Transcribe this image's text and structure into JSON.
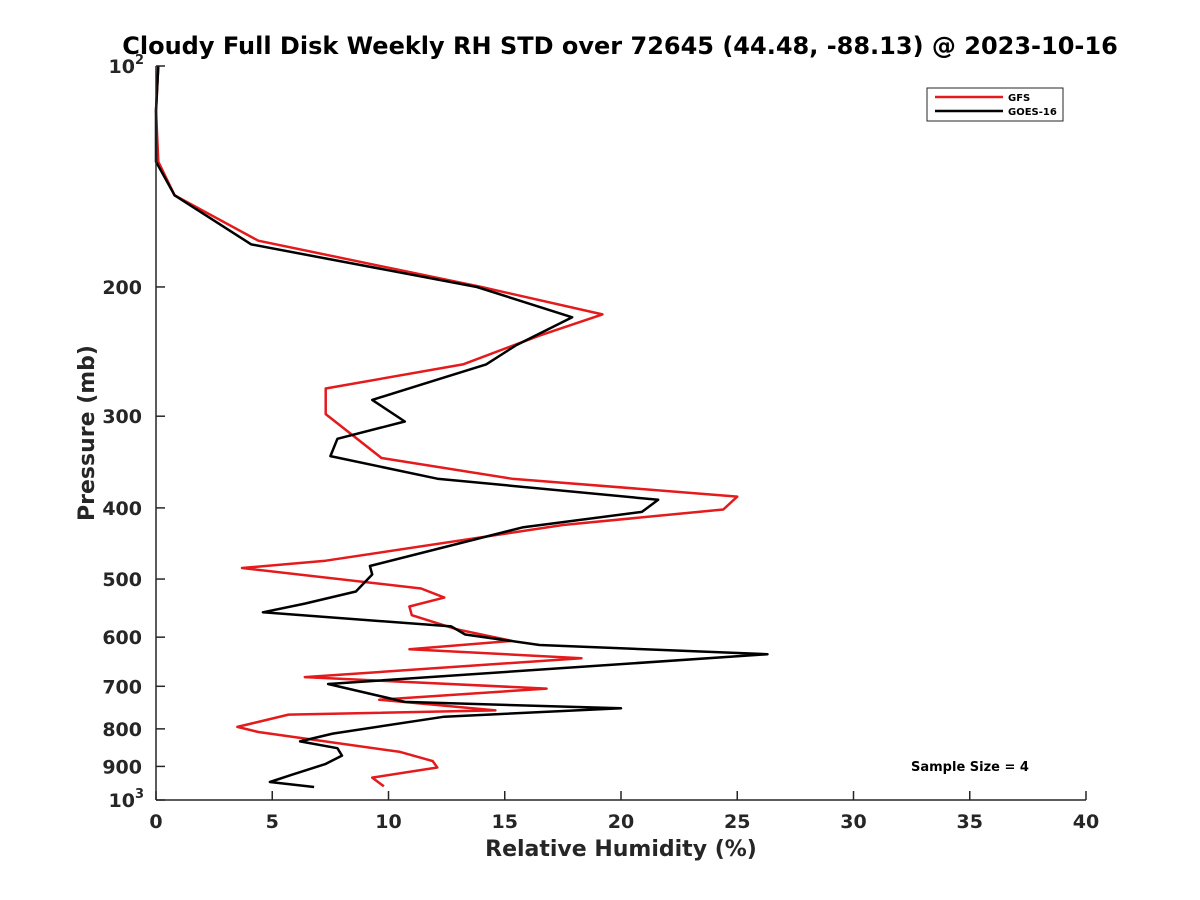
{
  "chart_data": {
    "type": "line",
    "title": "Cloudy Full Disk Weekly RH STD over 72645 (44.48, -88.13) @ 2023-10-16",
    "xlabel": "Relative Humidity (%)",
    "ylabel": "Pressure (mb)",
    "xlim": [
      0,
      40
    ],
    "ylim": [
      1000,
      100
    ],
    "y_scale": "log",
    "grid": false,
    "legend_position": "top-right",
    "x_ticks": [
      "0",
      "5",
      "10",
      "15",
      "20",
      "25",
      "30",
      "35",
      "40"
    ],
    "y_ticks": [
      {
        "value": 100,
        "base": "10",
        "exp": "2"
      },
      {
        "value": 200,
        "base": "200",
        "exp": ""
      },
      {
        "value": 300,
        "base": "300",
        "exp": ""
      },
      {
        "value": 400,
        "base": "400",
        "exp": ""
      },
      {
        "value": 500,
        "base": "500",
        "exp": ""
      },
      {
        "value": 600,
        "base": "600",
        "exp": ""
      },
      {
        "value": 700,
        "base": "700",
        "exp": ""
      },
      {
        "value": 800,
        "base": "800",
        "exp": ""
      },
      {
        "value": 900,
        "base": "900",
        "exp": ""
      },
      {
        "value": 1000,
        "base": "10",
        "exp": "3"
      }
    ],
    "annotation": "Sample Size = 4",
    "series": [
      {
        "name": "GFS",
        "color": "#e41a1c",
        "points": [
          [
            0.1,
            100
          ],
          [
            0.0,
            115
          ],
          [
            0.1,
            135
          ],
          [
            0.8,
            150
          ],
          [
            4.4,
            173
          ],
          [
            14.0,
            200
          ],
          [
            19.2,
            218
          ],
          [
            16.5,
            233
          ],
          [
            13.2,
            255
          ],
          [
            7.3,
            275
          ],
          [
            7.3,
            298
          ],
          [
            9.7,
            342
          ],
          [
            15.3,
            365
          ],
          [
            25.0,
            386
          ],
          [
            24.4,
            402
          ],
          [
            17.5,
            422
          ],
          [
            7.3,
            472
          ],
          [
            3.7,
            483
          ],
          [
            11.4,
            515
          ],
          [
            12.4,
            530
          ],
          [
            10.9,
            545
          ],
          [
            11.0,
            560
          ],
          [
            12.9,
            585
          ],
          [
            15.3,
            607
          ],
          [
            10.9,
            623
          ],
          [
            18.3,
            641
          ],
          [
            6.4,
            680
          ],
          [
            16.8,
            705
          ],
          [
            9.6,
            730
          ],
          [
            14.6,
            755
          ],
          [
            5.7,
            765
          ],
          [
            3.5,
            795
          ],
          [
            4.4,
            808
          ],
          [
            10.5,
            860
          ],
          [
            11.9,
            885
          ],
          [
            12.1,
            903
          ],
          [
            9.3,
            932
          ],
          [
            9.8,
            958
          ]
        ]
      },
      {
        "name": "GOES-16",
        "color": "#000000",
        "points": [
          [
            0.1,
            100
          ],
          [
            0.0,
            115
          ],
          [
            0.0,
            135
          ],
          [
            0.8,
            150
          ],
          [
            4.1,
            175
          ],
          [
            13.8,
            200
          ],
          [
            17.9,
            220
          ],
          [
            15.5,
            240
          ],
          [
            14.2,
            255
          ],
          [
            9.3,
            285
          ],
          [
            10.7,
            305
          ],
          [
            7.8,
            322
          ],
          [
            7.5,
            340
          ],
          [
            12.1,
            365
          ],
          [
            21.6,
            390
          ],
          [
            20.9,
            405
          ],
          [
            15.8,
            425
          ],
          [
            9.2,
            480
          ],
          [
            9.3,
            493
          ],
          [
            8.6,
            520
          ],
          [
            6.4,
            540
          ],
          [
            4.6,
            555
          ],
          [
            12.7,
            580
          ],
          [
            13.3,
            595
          ],
          [
            16.5,
            615
          ],
          [
            26.3,
            633
          ],
          [
            7.4,
            695
          ],
          [
            10.7,
            735
          ],
          [
            20.0,
            750
          ],
          [
            12.4,
            770
          ],
          [
            7.6,
            812
          ],
          [
            6.2,
            832
          ],
          [
            7.8,
            850
          ],
          [
            8.0,
            870
          ],
          [
            7.3,
            893
          ],
          [
            5.8,
            925
          ],
          [
            4.9,
            945
          ],
          [
            6.8,
            960
          ]
        ]
      }
    ]
  }
}
